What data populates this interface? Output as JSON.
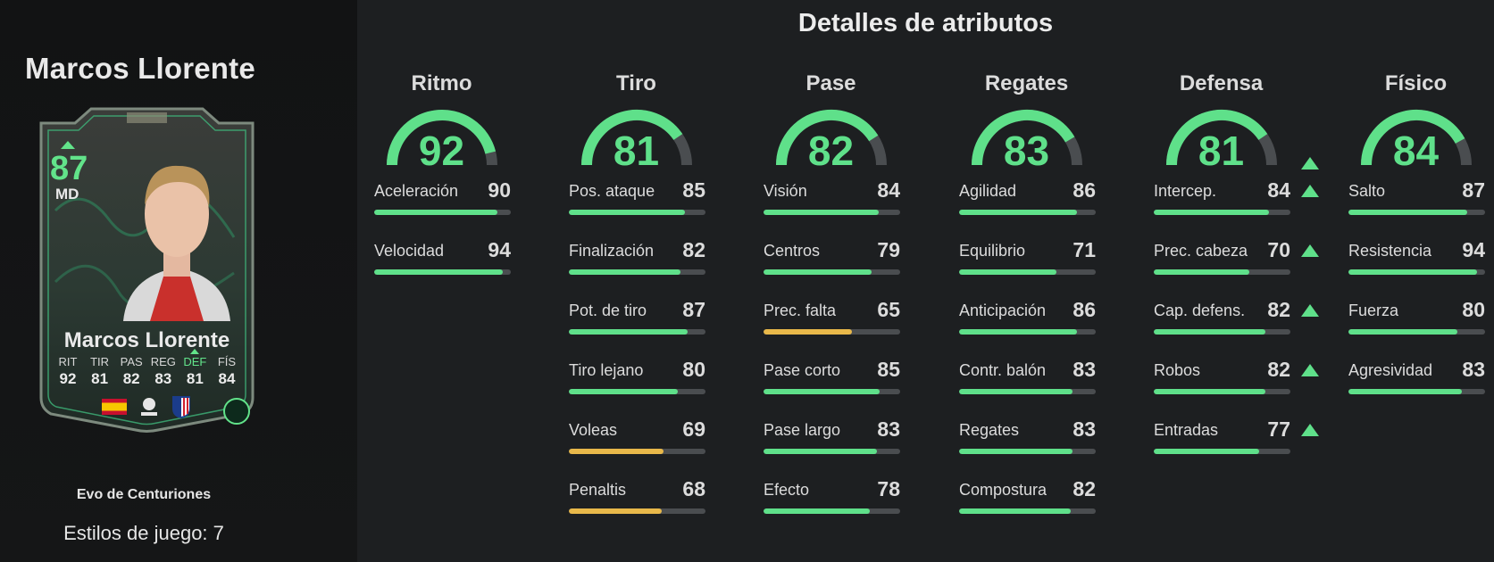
{
  "player": {
    "name": "Marcos Llorente",
    "card_name": "Marcos Llorente",
    "rating": "87",
    "position": "MD",
    "evo_name": "Evo de Centuriones",
    "playstyles": "Estilos de juego: 7",
    "card_stats": [
      {
        "label": "RIT",
        "value": "92",
        "boosted": false
      },
      {
        "label": "TIR",
        "value": "81",
        "boosted": false
      },
      {
        "label": "PAS",
        "value": "82",
        "boosted": false
      },
      {
        "label": "REG",
        "value": "83",
        "boosted": false
      },
      {
        "label": "DEF",
        "value": "81",
        "boosted": true
      },
      {
        "label": "FÍS",
        "value": "84",
        "boosted": false
      }
    ]
  },
  "heading": "Detalles de atributos",
  "colors": {
    "green": "#5fe08a",
    "yellow": "#e8b84a",
    "track": "#4a4d50"
  },
  "categories": [
    {
      "name": "Ritmo",
      "value": 92,
      "boosted": false,
      "attrs": [
        {
          "name": "Aceleración",
          "value": 90,
          "boosted": false
        },
        {
          "name": "Velocidad",
          "value": 94,
          "boosted": false
        }
      ]
    },
    {
      "name": "Tiro",
      "value": 81,
      "boosted": false,
      "attrs": [
        {
          "name": "Pos. ataque",
          "value": 85,
          "boosted": false
        },
        {
          "name": "Finalización",
          "value": 82,
          "boosted": false
        },
        {
          "name": "Pot. de tiro",
          "value": 87,
          "boosted": false
        },
        {
          "name": "Tiro lejano",
          "value": 80,
          "boosted": false
        },
        {
          "name": "Voleas",
          "value": 69,
          "boosted": false
        },
        {
          "name": "Penaltis",
          "value": 68,
          "boosted": false
        }
      ]
    },
    {
      "name": "Pase",
      "value": 82,
      "boosted": false,
      "attrs": [
        {
          "name": "Visión",
          "value": 84,
          "boosted": false
        },
        {
          "name": "Centros",
          "value": 79,
          "boosted": false
        },
        {
          "name": "Prec. falta",
          "value": 65,
          "boosted": false
        },
        {
          "name": "Pase corto",
          "value": 85,
          "boosted": false
        },
        {
          "name": "Pase largo",
          "value": 83,
          "boosted": false
        },
        {
          "name": "Efecto",
          "value": 78,
          "boosted": false
        }
      ]
    },
    {
      "name": "Regates",
      "value": 83,
      "boosted": false,
      "attrs": [
        {
          "name": "Agilidad",
          "value": 86,
          "boosted": false
        },
        {
          "name": "Equilibrio",
          "value": 71,
          "boosted": false
        },
        {
          "name": "Anticipación",
          "value": 86,
          "boosted": false
        },
        {
          "name": "Contr. balón",
          "value": 83,
          "boosted": false
        },
        {
          "name": "Regates",
          "value": 83,
          "boosted": false
        },
        {
          "name": "Compostura",
          "value": 82,
          "boosted": false
        }
      ]
    },
    {
      "name": "Defensa",
      "value": 81,
      "boosted": true,
      "attrs": [
        {
          "name": "Intercep.",
          "value": 84,
          "boosted": true
        },
        {
          "name": "Prec. cabeza",
          "value": 70,
          "boosted": true
        },
        {
          "name": "Cap. defens.",
          "value": 82,
          "boosted": true
        },
        {
          "name": "Robos",
          "value": 82,
          "boosted": true
        },
        {
          "name": "Entradas",
          "value": 77,
          "boosted": true
        }
      ]
    },
    {
      "name": "Físico",
      "value": 84,
      "boosted": false,
      "attrs": [
        {
          "name": "Salto",
          "value": 87,
          "boosted": false
        },
        {
          "name": "Resistencia",
          "value": 94,
          "boosted": false
        },
        {
          "name": "Fuerza",
          "value": 80,
          "boosted": false
        },
        {
          "name": "Agresividad",
          "value": 83,
          "boosted": false
        }
      ]
    }
  ]
}
